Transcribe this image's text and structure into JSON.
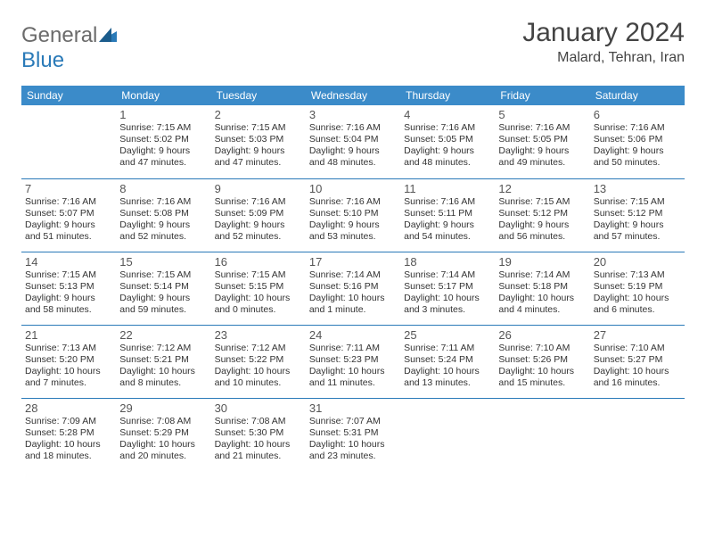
{
  "brand": {
    "general": "General",
    "blue": "Blue"
  },
  "title": "January 2024",
  "location": "Malard, Tehran, Iran",
  "colors": {
    "header_bg": "#3b8bc9",
    "header_text": "#ffffff",
    "row_border": "#2a7ab8",
    "text": "#333333",
    "title_text": "#444444",
    "logo_gray": "#6b6b6b",
    "logo_blue": "#2a7ab8",
    "background": "#ffffff"
  },
  "typography": {
    "title_fontsize": 30,
    "location_fontsize": 16,
    "weekday_fontsize": 12,
    "daynum_fontsize": 13,
    "cell_fontsize": 10.5
  },
  "weekdays": [
    "Sunday",
    "Monday",
    "Tuesday",
    "Wednesday",
    "Thursday",
    "Friday",
    "Saturday"
  ],
  "weeks": [
    [
      null,
      {
        "n": "1",
        "sr": "Sunrise: 7:15 AM",
        "ss": "Sunset: 5:02 PM",
        "d1": "Daylight: 9 hours",
        "d2": "and 47 minutes."
      },
      {
        "n": "2",
        "sr": "Sunrise: 7:15 AM",
        "ss": "Sunset: 5:03 PM",
        "d1": "Daylight: 9 hours",
        "d2": "and 47 minutes."
      },
      {
        "n": "3",
        "sr": "Sunrise: 7:16 AM",
        "ss": "Sunset: 5:04 PM",
        "d1": "Daylight: 9 hours",
        "d2": "and 48 minutes."
      },
      {
        "n": "4",
        "sr": "Sunrise: 7:16 AM",
        "ss": "Sunset: 5:05 PM",
        "d1": "Daylight: 9 hours",
        "d2": "and 48 minutes."
      },
      {
        "n": "5",
        "sr": "Sunrise: 7:16 AM",
        "ss": "Sunset: 5:05 PM",
        "d1": "Daylight: 9 hours",
        "d2": "and 49 minutes."
      },
      {
        "n": "6",
        "sr": "Sunrise: 7:16 AM",
        "ss": "Sunset: 5:06 PM",
        "d1": "Daylight: 9 hours",
        "d2": "and 50 minutes."
      }
    ],
    [
      {
        "n": "7",
        "sr": "Sunrise: 7:16 AM",
        "ss": "Sunset: 5:07 PM",
        "d1": "Daylight: 9 hours",
        "d2": "and 51 minutes."
      },
      {
        "n": "8",
        "sr": "Sunrise: 7:16 AM",
        "ss": "Sunset: 5:08 PM",
        "d1": "Daylight: 9 hours",
        "d2": "and 52 minutes."
      },
      {
        "n": "9",
        "sr": "Sunrise: 7:16 AM",
        "ss": "Sunset: 5:09 PM",
        "d1": "Daylight: 9 hours",
        "d2": "and 52 minutes."
      },
      {
        "n": "10",
        "sr": "Sunrise: 7:16 AM",
        "ss": "Sunset: 5:10 PM",
        "d1": "Daylight: 9 hours",
        "d2": "and 53 minutes."
      },
      {
        "n": "11",
        "sr": "Sunrise: 7:16 AM",
        "ss": "Sunset: 5:11 PM",
        "d1": "Daylight: 9 hours",
        "d2": "and 54 minutes."
      },
      {
        "n": "12",
        "sr": "Sunrise: 7:15 AM",
        "ss": "Sunset: 5:12 PM",
        "d1": "Daylight: 9 hours",
        "d2": "and 56 minutes."
      },
      {
        "n": "13",
        "sr": "Sunrise: 7:15 AM",
        "ss": "Sunset: 5:12 PM",
        "d1": "Daylight: 9 hours",
        "d2": "and 57 minutes."
      }
    ],
    [
      {
        "n": "14",
        "sr": "Sunrise: 7:15 AM",
        "ss": "Sunset: 5:13 PM",
        "d1": "Daylight: 9 hours",
        "d2": "and 58 minutes."
      },
      {
        "n": "15",
        "sr": "Sunrise: 7:15 AM",
        "ss": "Sunset: 5:14 PM",
        "d1": "Daylight: 9 hours",
        "d2": "and 59 minutes."
      },
      {
        "n": "16",
        "sr": "Sunrise: 7:15 AM",
        "ss": "Sunset: 5:15 PM",
        "d1": "Daylight: 10 hours",
        "d2": "and 0 minutes."
      },
      {
        "n": "17",
        "sr": "Sunrise: 7:14 AM",
        "ss": "Sunset: 5:16 PM",
        "d1": "Daylight: 10 hours",
        "d2": "and 1 minute."
      },
      {
        "n": "18",
        "sr": "Sunrise: 7:14 AM",
        "ss": "Sunset: 5:17 PM",
        "d1": "Daylight: 10 hours",
        "d2": "and 3 minutes."
      },
      {
        "n": "19",
        "sr": "Sunrise: 7:14 AM",
        "ss": "Sunset: 5:18 PM",
        "d1": "Daylight: 10 hours",
        "d2": "and 4 minutes."
      },
      {
        "n": "20",
        "sr": "Sunrise: 7:13 AM",
        "ss": "Sunset: 5:19 PM",
        "d1": "Daylight: 10 hours",
        "d2": "and 6 minutes."
      }
    ],
    [
      {
        "n": "21",
        "sr": "Sunrise: 7:13 AM",
        "ss": "Sunset: 5:20 PM",
        "d1": "Daylight: 10 hours",
        "d2": "and 7 minutes."
      },
      {
        "n": "22",
        "sr": "Sunrise: 7:12 AM",
        "ss": "Sunset: 5:21 PM",
        "d1": "Daylight: 10 hours",
        "d2": "and 8 minutes."
      },
      {
        "n": "23",
        "sr": "Sunrise: 7:12 AM",
        "ss": "Sunset: 5:22 PM",
        "d1": "Daylight: 10 hours",
        "d2": "and 10 minutes."
      },
      {
        "n": "24",
        "sr": "Sunrise: 7:11 AM",
        "ss": "Sunset: 5:23 PM",
        "d1": "Daylight: 10 hours",
        "d2": "and 11 minutes."
      },
      {
        "n": "25",
        "sr": "Sunrise: 7:11 AM",
        "ss": "Sunset: 5:24 PM",
        "d1": "Daylight: 10 hours",
        "d2": "and 13 minutes."
      },
      {
        "n": "26",
        "sr": "Sunrise: 7:10 AM",
        "ss": "Sunset: 5:26 PM",
        "d1": "Daylight: 10 hours",
        "d2": "and 15 minutes."
      },
      {
        "n": "27",
        "sr": "Sunrise: 7:10 AM",
        "ss": "Sunset: 5:27 PM",
        "d1": "Daylight: 10 hours",
        "d2": "and 16 minutes."
      }
    ],
    [
      {
        "n": "28",
        "sr": "Sunrise: 7:09 AM",
        "ss": "Sunset: 5:28 PM",
        "d1": "Daylight: 10 hours",
        "d2": "and 18 minutes."
      },
      {
        "n": "29",
        "sr": "Sunrise: 7:08 AM",
        "ss": "Sunset: 5:29 PM",
        "d1": "Daylight: 10 hours",
        "d2": "and 20 minutes."
      },
      {
        "n": "30",
        "sr": "Sunrise: 7:08 AM",
        "ss": "Sunset: 5:30 PM",
        "d1": "Daylight: 10 hours",
        "d2": "and 21 minutes."
      },
      {
        "n": "31",
        "sr": "Sunrise: 7:07 AM",
        "ss": "Sunset: 5:31 PM",
        "d1": "Daylight: 10 hours",
        "d2": "and 23 minutes."
      },
      null,
      null,
      null
    ]
  ]
}
